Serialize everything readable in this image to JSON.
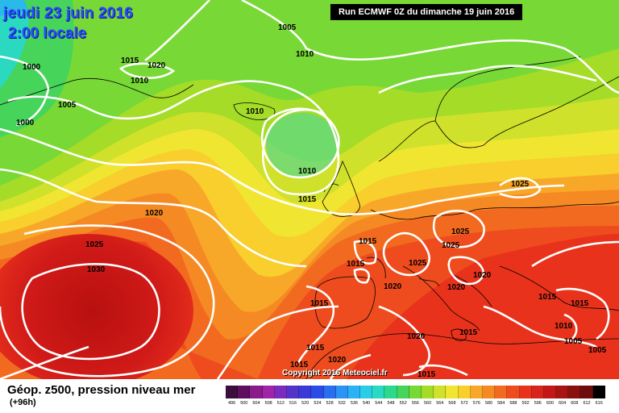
{
  "header": {
    "date": "jeudi 23 juin 2016",
    "local_time": "2:00 locale",
    "run": "Run ECMWF 0Z du dimanche 19 juin 2016"
  },
  "map": {
    "copyright": "Copyright 2016 Meteociel.fr",
    "isobar_labels": [
      "1005",
      "1000",
      "1015",
      "1020",
      "1010",
      "1005",
      "1000",
      "1010",
      "1010",
      "1010",
      "1015",
      "1020",
      "1025",
      "1030",
      "1025",
      "1025",
      "1015",
      "1015",
      "1025",
      "1020",
      "1015",
      "1020",
      "1020",
      "1025",
      "1015",
      "1015",
      "1010",
      "1005",
      "1005",
      "1015",
      "1020",
      "1015",
      "1015",
      "1020",
      "1015"
    ]
  },
  "legend": {
    "title": "Géop. z500, pression niveau mer",
    "forecast_hour": "(+96h)",
    "scale_values": [
      "496",
      "500",
      "504",
      "508",
      "512",
      "516",
      "520",
      "524",
      "528",
      "532",
      "536",
      "540",
      "544",
      "548",
      "552",
      "556",
      "560",
      "564",
      "568",
      "572",
      "576",
      "580",
      "584",
      "588",
      "592",
      "596",
      "600",
      "604",
      "608",
      "612",
      "616"
    ],
    "scale_colors": [
      "#3b0f3b",
      "#5e0f60",
      "#8a1b8a",
      "#a024a8",
      "#7a2cc0",
      "#5434c8",
      "#3a3ad8",
      "#2a4be6",
      "#2a6ef0",
      "#2a93f5",
      "#2ab2f5",
      "#2acde6",
      "#2ad9c0",
      "#2ad98c",
      "#46d45a",
      "#78d836",
      "#a4dc28",
      "#cfe12a",
      "#f0e632",
      "#f8cf2c",
      "#f8a828",
      "#f58a24",
      "#f26a20",
      "#ee4c1e",
      "#e8321c",
      "#d8241a",
      "#c41818",
      "#a81414",
      "#8a1010",
      "#6c0c0c",
      "#000000"
    ]
  }
}
